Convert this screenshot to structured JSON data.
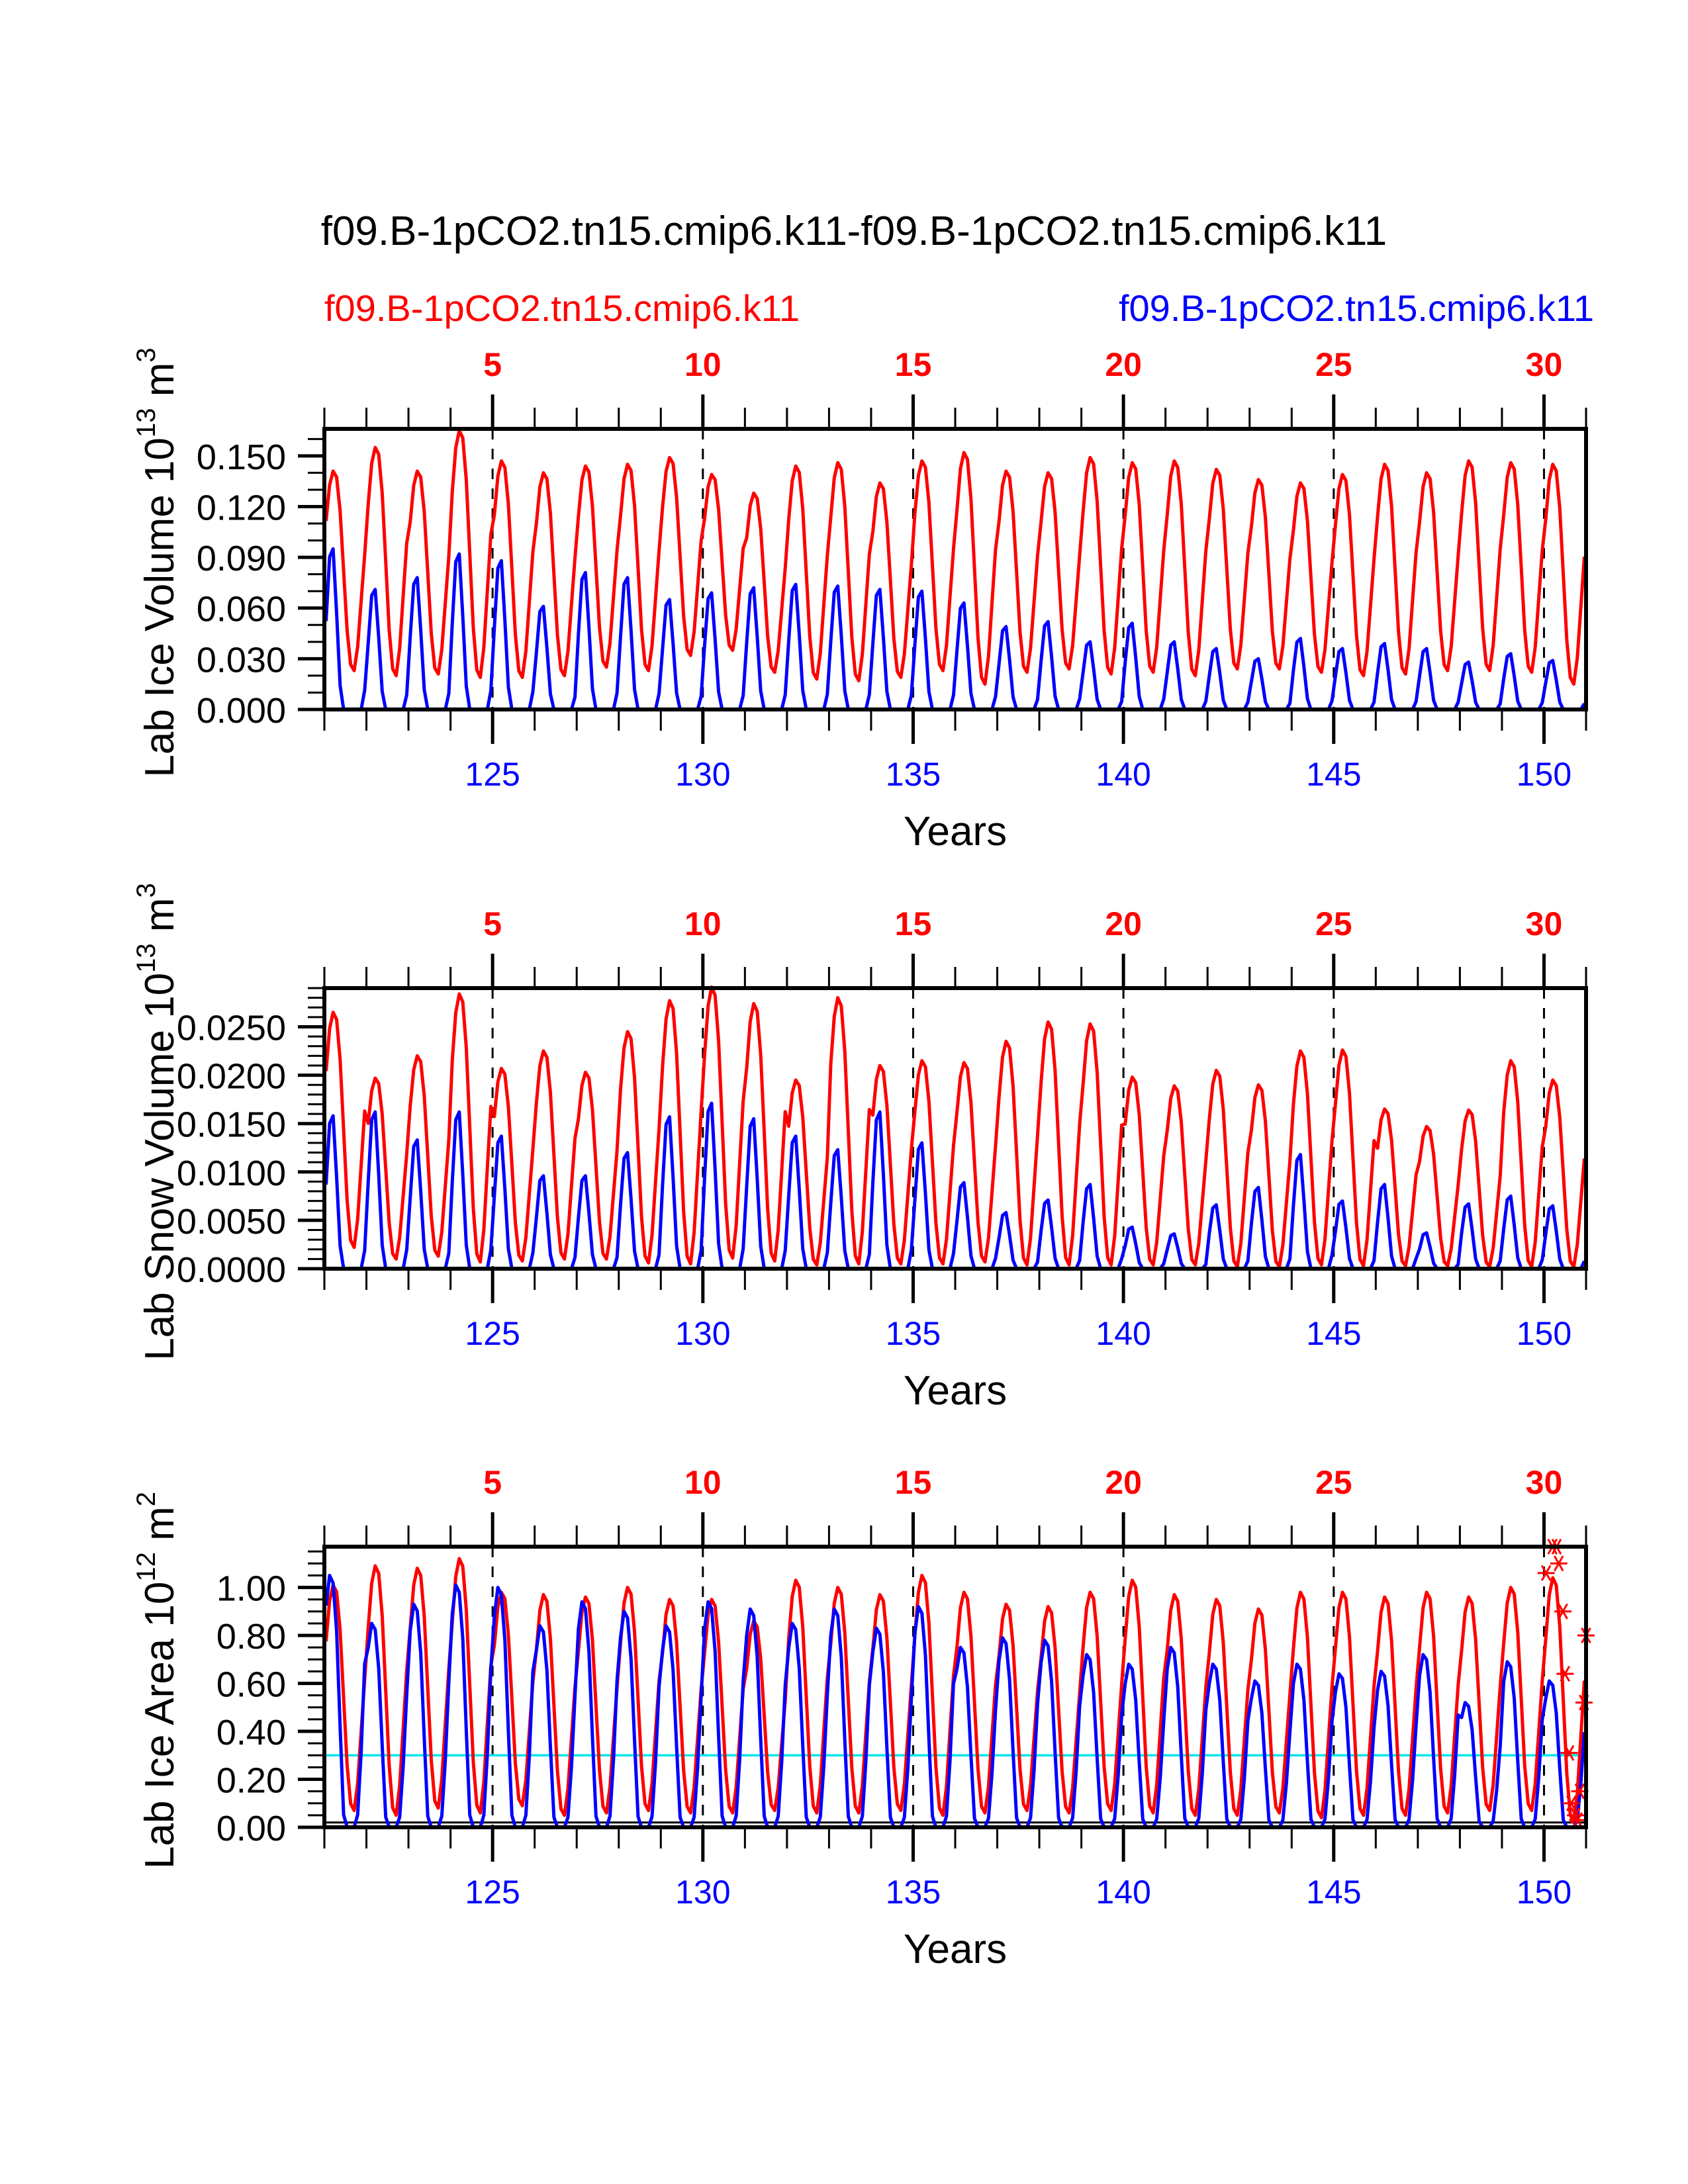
{
  "title": "f09.B-1pCO2.tn15.cmip6.k11-f09.B-1pCO2.tn15.cmip6.k11",
  "legend": {
    "left_label": "f09.B-1pCO2.tn15.cmip6.k11",
    "right_label": "f09.B-1pCO2.tn15.cmip6.k11",
    "left_color": "#ff0000",
    "right_color": "#0000ff"
  },
  "colors": {
    "case1": "#ff0000",
    "case2": "#0000ff",
    "reference_line": "#00e5ee",
    "axis": "#000000"
  },
  "chart_data": [
    {
      "type": "line",
      "panel": "ice-volume",
      "ylabel": "Lab Ice Volume 10",
      "ylabel_exp": "13",
      "ylabel_unit": " m",
      "ylabel_unit_exp": "3",
      "xlabel": "Years",
      "xlim": [
        121,
        151
      ],
      "ylim": [
        0.0,
        0.166
      ],
      "yticks": [
        0.0,
        0.03,
        0.06,
        0.09,
        0.12,
        0.15
      ],
      "ytick_labels": [
        "0.000",
        "0.030",
        "0.060",
        "0.090",
        "0.120",
        "0.150"
      ],
      "yminor_step": 0.01,
      "bottom_xticks": [
        125,
        130,
        135,
        140,
        145,
        150
      ],
      "bottom_xtick_labels": [
        "125",
        "130",
        "135",
        "140",
        "145",
        "150"
      ],
      "top_xticks_at": [
        125,
        130,
        135,
        140,
        145,
        150
      ],
      "top_xtick_labels": [
        "5",
        "10",
        "15",
        "20",
        "25",
        "30"
      ],
      "dashed_vlines": [
        125,
        130,
        135,
        140,
        145,
        150
      ],
      "series": [
        {
          "name": "f09.B-1pCO2.tn15.cmip6.k11 (red)",
          "color": "#ff0000",
          "years_start": 121,
          "peaks": [
            0.141,
            0.155,
            0.141,
            0.165,
            0.147,
            0.14,
            0.144,
            0.145,
            0.149,
            0.139,
            0.128,
            0.144,
            0.146,
            0.134,
            0.147,
            0.152,
            0.141,
            0.14,
            0.149,
            0.146,
            0.147,
            0.142,
            0.136,
            0.134,
            0.139,
            0.145,
            0.14,
            0.147,
            0.146,
            0.145
          ],
          "troughs": [
            0.023,
            0.02,
            0.021,
            0.019,
            0.019,
            0.02,
            0.025,
            0.023,
            0.032,
            0.035,
            0.022,
            0.018,
            0.017,
            0.019,
            0.023,
            0.015,
            0.022,
            0.024,
            0.021,
            0.022,
            0.02,
            0.024,
            0.024,
            0.022,
            0.02,
            0.021,
            0.023,
            0.023,
            0.022,
            0.015
          ]
        },
        {
          "name": "f09.B-1pCO2.tn15.cmip6.k11 (blue)",
          "color": "#0000ff",
          "years_start": 121,
          "peaks": [
            0.095,
            0.071,
            0.078,
            0.092,
            0.088,
            0.061,
            0.081,
            0.078,
            0.065,
            0.069,
            0.072,
            0.074,
            0.073,
            0.071,
            0.07,
            0.063,
            0.049,
            0.052,
            0.04,
            0.051,
            0.04,
            0.036,
            0.03,
            0.042,
            0.036,
            0.039,
            0.036,
            0.028,
            0.033,
            0.029
          ],
          "troughs": [
            0.0,
            0.0,
            0.0,
            0.0,
            0.0,
            0.0,
            0.0,
            0.0,
            0.0,
            0.0,
            0.0,
            0.0,
            0.0,
            0.0,
            0.0,
            0.0,
            0.0,
            0.0,
            0.0,
            0.0,
            0.0,
            0.0,
            0.0,
            0.0,
            0.0,
            0.0,
            0.0,
            0.0,
            0.0,
            0.0
          ]
        }
      ]
    },
    {
      "type": "line",
      "panel": "snow-volume",
      "ylabel": "Lab Snow Volume 10",
      "ylabel_exp": "13",
      "ylabel_unit": " m",
      "ylabel_unit_exp": "3",
      "xlabel": "Years",
      "xlim": [
        121,
        151
      ],
      "ylim": [
        0.0,
        0.029
      ],
      "yticks": [
        0.0,
        0.005,
        0.01,
        0.015,
        0.02,
        0.025
      ],
      "ytick_labels": [
        "0.0000",
        "0.0050",
        "0.0100",
        "0.0150",
        "0.0200",
        "0.0250"
      ],
      "yminor_step": 0.001,
      "bottom_xticks": [
        125,
        130,
        135,
        140,
        145,
        150
      ],
      "bottom_xtick_labels": [
        "125",
        "130",
        "135",
        "140",
        "145",
        "150"
      ],
      "top_xticks_at": [
        125,
        130,
        135,
        140,
        145,
        150
      ],
      "top_xtick_labels": [
        "5",
        "10",
        "15",
        "20",
        "25",
        "30"
      ],
      "dashed_vlines": [
        125,
        130,
        135,
        140,
        145,
        150
      ],
      "series": [
        {
          "name": "f09.B-1pCO2.tn15.cmip6.k11 (red)",
          "color": "#ff0000",
          "years_start": 121,
          "peaks": [
            0.0265,
            0.0197,
            0.022,
            0.0284,
            0.0207,
            0.0225,
            0.0203,
            0.0245,
            0.0277,
            0.0291,
            0.0274,
            0.0195,
            0.028,
            0.021,
            0.0215,
            0.0213,
            0.0235,
            0.0255,
            0.0253,
            0.0198,
            0.0189,
            0.0205,
            0.019,
            0.0225,
            0.0226,
            0.0165,
            0.0147,
            0.0164,
            0.0215,
            0.0195
          ],
          "troughs": [
            0.0022,
            0.001,
            0.0013,
            0.0007,
            0.0008,
            0.001,
            0.001,
            0.0006,
            0.0005,
            0.0011,
            0.0008,
            0.0004,
            0.0005,
            0.0005,
            0.0005,
            0.0007,
            0.0004,
            0.0004,
            0.0004,
            0.0004,
            0.0004,
            0.0002,
            0.0002,
            0.0004,
            0.0003,
            0.0003,
            0.0003,
            0.0002,
            0.0002,
            0.0002
          ]
        },
        {
          "name": "f09.B-1pCO2.tn15.cmip6.k11 (blue)",
          "color": "#0000ff",
          "years_start": 121,
          "peaks": [
            0.0158,
            0.0162,
            0.0133,
            0.0162,
            0.0137,
            0.0096,
            0.0096,
            0.012,
            0.0157,
            0.0171,
            0.0155,
            0.0137,
            0.0123,
            0.0162,
            0.013,
            0.0089,
            0.0058,
            0.0071,
            0.0087,
            0.0043,
            0.0036,
            0.0066,
            0.0084,
            0.0118,
            0.007,
            0.0087,
            0.0037,
            0.0067,
            0.0075,
            0.0065
          ],
          "troughs": [
            0.0,
            0.0,
            0.0,
            0.0,
            0.0,
            0.0,
            0.0,
            0.0,
            0.0,
            0.0,
            0.0,
            0.0,
            0.0,
            0.0,
            0.0,
            0.0,
            0.0,
            0.0,
            0.0,
            0.0,
            0.0,
            0.0,
            0.0,
            0.0,
            0.0,
            0.0,
            0.0,
            0.0,
            0.0,
            0.0
          ]
        }
      ]
    },
    {
      "type": "line",
      "panel": "ice-area",
      "ylabel": "Lab Ice Area 10",
      "ylabel_exp": "12",
      "ylabel_unit": " m",
      "ylabel_unit_exp": "2",
      "xlabel": "Years",
      "xlim": [
        121,
        151
      ],
      "ylim": [
        0.0,
        1.17
      ],
      "yticks": [
        0.0,
        0.2,
        0.4,
        0.6,
        0.8,
        1.0
      ],
      "ytick_labels": [
        "0.00",
        "0.20",
        "0.40",
        "0.60",
        "0.80",
        "1.00"
      ],
      "yminor_step": 0.05,
      "bottom_xticks": [
        125,
        130,
        135,
        140,
        145,
        150
      ],
      "bottom_xtick_labels": [
        "125",
        "130",
        "135",
        "140",
        "145",
        "150"
      ],
      "top_xticks_at": [
        125,
        130,
        135,
        140,
        145,
        150
      ],
      "top_xtick_labels": [
        "5",
        "10",
        "15",
        "20",
        "25",
        "30"
      ],
      "dashed_vlines": [
        125,
        130,
        135,
        140,
        145,
        150
      ],
      "hlines": [
        {
          "y": 0.3,
          "color": "#00e5ee"
        },
        {
          "y": 0.02,
          "color": "#000000"
        }
      ],
      "series": [
        {
          "name": "f09.B-1pCO2.tn15.cmip6.k11 (red)",
          "color": "#ff0000",
          "years_start": 121,
          "peaks": [
            1.01,
            1.09,
            1.08,
            1.12,
            0.98,
            0.97,
            0.96,
            1.0,
            0.95,
            0.95,
            0.86,
            1.03,
            1.0,
            0.97,
            1.05,
            0.98,
            0.93,
            0.92,
            0.98,
            1.03,
            0.97,
            0.95,
            0.91,
            0.98,
            0.98,
            0.96,
            0.98,
            0.96,
            1.0,
            1.04
          ],
          "troughs": [
            0.07,
            0.05,
            0.08,
            0.06,
            0.09,
            0.05,
            0.06,
            0.07,
            0.06,
            0.06,
            0.07,
            0.06,
            0.06,
            0.07,
            0.05,
            0.06,
            0.07,
            0.06,
            0.07,
            0.06,
            0.05,
            0.05,
            0.06,
            0.04,
            0.05,
            0.05,
            0.06,
            0.07,
            0.07,
            0.02
          ]
        },
        {
          "name": "f09.B-1pCO2.tn15.cmip6.k11 (blue)",
          "color": "#0000ff",
          "years_start": 121,
          "peaks": [
            1.05,
            0.85,
            0.93,
            1.01,
            1.0,
            0.84,
            0.94,
            0.9,
            0.84,
            0.94,
            0.91,
            0.85,
            0.91,
            0.83,
            0.92,
            0.75,
            0.79,
            0.78,
            0.72,
            0.68,
            0.75,
            0.68,
            0.61,
            0.68,
            0.64,
            0.65,
            0.72,
            0.52,
            0.69,
            0.61
          ],
          "troughs": [
            0.0,
            0.0,
            0.0,
            0.0,
            0.0,
            0.0,
            0.0,
            0.0,
            0.0,
            0.0,
            0.0,
            0.0,
            0.0,
            0.0,
            0.0,
            0.0,
            0.0,
            0.0,
            0.0,
            0.0,
            0.0,
            0.0,
            0.0,
            0.0,
            0.0,
            0.0,
            0.0,
            0.0,
            0.0,
            0.0
          ]
        }
      ],
      "markers": {
        "symbol": "asterisk",
        "color": "#ff0000",
        "points": [
          [
            150.05,
            1.06
          ],
          [
            150.2,
            1.17
          ],
          [
            150.3,
            1.17
          ],
          [
            150.35,
            1.1
          ],
          [
            150.45,
            0.9
          ],
          [
            150.5,
            0.64
          ],
          [
            150.6,
            0.31
          ],
          [
            150.65,
            0.1
          ],
          [
            150.75,
            0.05
          ],
          [
            150.8,
            0.03
          ],
          [
            150.85,
            0.15
          ],
          [
            150.95,
            0.52
          ],
          [
            151.0,
            0.8
          ]
        ]
      }
    }
  ]
}
